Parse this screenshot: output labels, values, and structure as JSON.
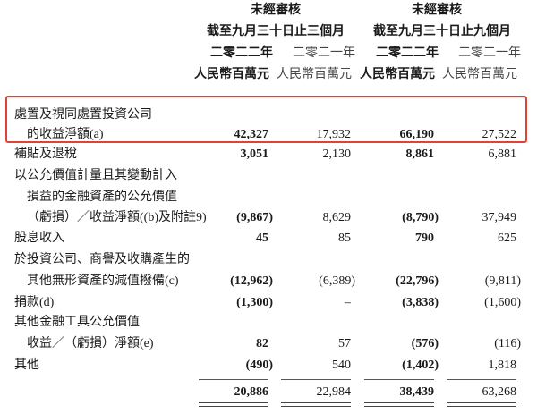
{
  "header": {
    "audit_left": "未經審核",
    "audit_right": "未經審核",
    "period_left": "截至九月三十日止三個月",
    "period_right": "截至九月三十日止九個月",
    "years": [
      "二零二二年",
      "二零二一年",
      "二零二二年",
      "二零二一年"
    ],
    "units": [
      "人民幣百萬元",
      "人民幣百萬元",
      "人民幣百萬元",
      "人民幣百萬元"
    ]
  },
  "highlight_color": "#e0423a",
  "rows": [
    {
      "label": "處置及視同處置投資公司",
      "indent": false,
      "values": []
    },
    {
      "label": "的收益淨額(a)",
      "indent": true,
      "values": [
        "42,327",
        "17,932",
        "66,190",
        "27,522"
      ]
    },
    {
      "label": "補貼及退稅",
      "indent": false,
      "values": [
        "3,051",
        "2,130",
        "8,861",
        "6,881"
      ]
    },
    {
      "label": "以公允價值計量且其變動計入",
      "indent": false,
      "values": []
    },
    {
      "label": "損益的金融資產的公允價值",
      "indent": true,
      "values": []
    },
    {
      "label": "（虧損）／收益淨額((b)及附註9)",
      "indent": true,
      "values": [
        "(9,867)",
        "8,629",
        "(8,790)",
        "37,949"
      ]
    },
    {
      "label": "股息收入",
      "indent": false,
      "values": [
        "45",
        "85",
        "790",
        "625"
      ]
    },
    {
      "label": "於投資公司、商譽及收購產生的",
      "indent": false,
      "values": []
    },
    {
      "label": "其他無形資產的減值撥備(c)",
      "indent": true,
      "values": [
        "(12,962)",
        "(6,389)",
        "(22,796)",
        "(9,811)"
      ]
    },
    {
      "label": "捐款(d)",
      "indent": false,
      "values": [
        "(1,300)",
        "–",
        "(3,838)",
        "(1,600)"
      ]
    },
    {
      "label": "其他金融工具公允價值",
      "indent": false,
      "values": []
    },
    {
      "label": "收益／（虧損）淨額(e)",
      "indent": true,
      "values": [
        "82",
        "57",
        "(576)",
        "(116)"
      ]
    },
    {
      "label": "其他",
      "indent": false,
      "values": [
        "(490)",
        "540",
        "(1,402)",
        "1,818"
      ]
    },
    {
      "label": "",
      "indent": false,
      "values": [
        "20,886",
        "22,984",
        "38,439",
        "63,268"
      ]
    }
  ]
}
